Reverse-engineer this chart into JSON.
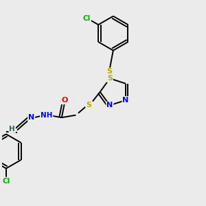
{
  "bg_color": "#ebebeb",
  "atom_colors": {
    "C": "#000000",
    "N": "#0000ee",
    "S": "#bbaa00",
    "O": "#ee0000",
    "Cl": "#00aa00",
    "H": "#336655"
  },
  "bond_color": "#000000",
  "bond_width": 1.4,
  "fig_w": 3.0,
  "fig_h": 3.0,
  "dpi": 100
}
